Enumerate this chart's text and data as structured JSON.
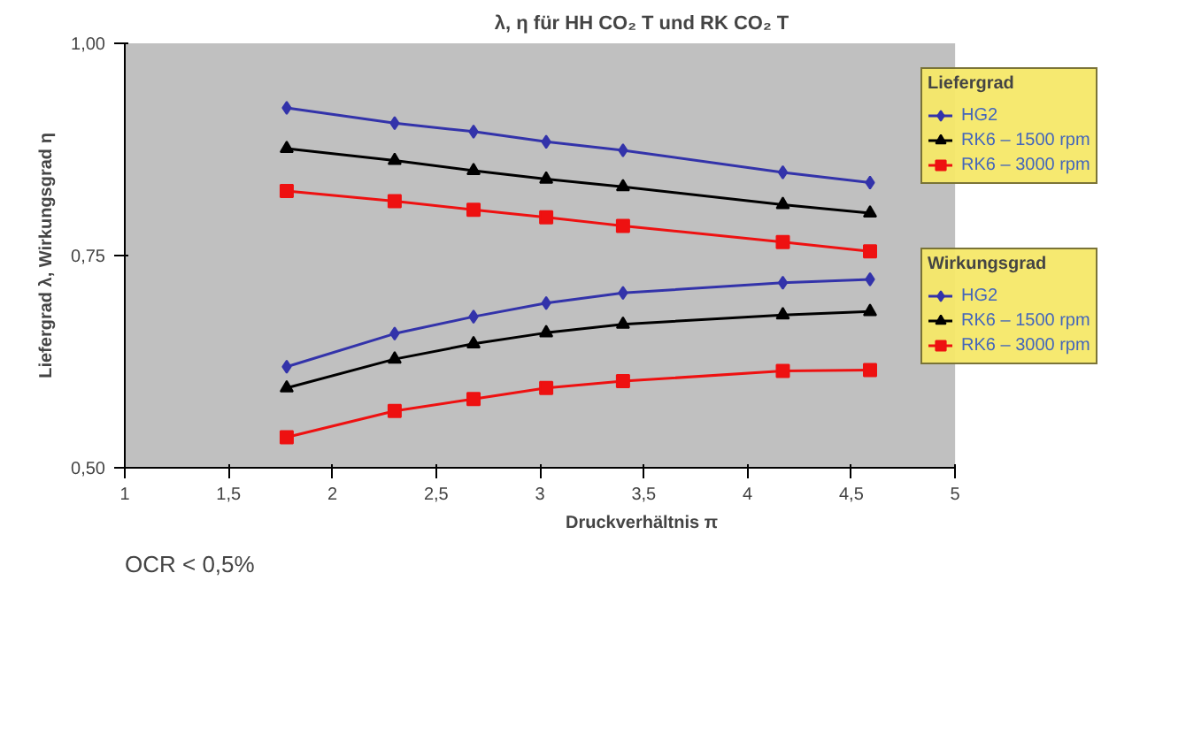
{
  "chart_data": {
    "type": "line",
    "title": "λ, η für HH CO₂ T und RK CO₂ T",
    "xlabel": "Druckverhältnis π",
    "ylabel": "Liefergrad λ, Wirkungsgrad η",
    "x": [
      1.78,
      2.3,
      2.68,
      3.03,
      3.4,
      4.17,
      4.59
    ],
    "series": [
      {
        "name": "HG2",
        "color": "#3333aa",
        "marker": "diamond",
        "values": [
          0.924,
          0.906,
          0.896,
          0.884,
          0.874,
          0.848,
          0.836
        ]
      },
      {
        "name": "RK6 – 1500 rpm",
        "color": "#000000",
        "marker": "triangle",
        "values": [
          0.876,
          0.862,
          0.85,
          0.84,
          0.831,
          0.81,
          0.8
        ]
      },
      {
        "name": "RK6 – 3000 rpm",
        "color": "#ee1111",
        "marker": "square",
        "values": [
          0.826,
          0.814,
          0.804,
          0.795,
          0.785,
          0.766,
          0.755
        ]
      },
      {
        "name": "HG2",
        "color": "#3333aa",
        "marker": "diamond",
        "values": [
          0.619,
          0.658,
          0.678,
          0.694,
          0.706,
          0.718,
          0.722
        ]
      },
      {
        "name": "RK6 – 1500 rpm",
        "color": "#000000",
        "marker": "triangle",
        "values": [
          0.594,
          0.628,
          0.646,
          0.659,
          0.669,
          0.68,
          0.684
        ]
      },
      {
        "name": "RK6 – 3000 rpm",
        "color": "#ee1111",
        "marker": "square",
        "values": [
          0.536,
          0.567,
          0.581,
          0.594,
          0.602,
          0.614,
          0.615
        ]
      }
    ],
    "xlim": [
      1,
      5
    ],
    "xticks": [
      1,
      {
        "value": 1.5,
        "label": "1,5"
      },
      2,
      {
        "value": 2.5,
        "label": "2,5"
      },
      3,
      {
        "value": 3.5,
        "label": "3,5"
      },
      4,
      {
        "value": 4.5,
        "label": "4,5"
      },
      5
    ],
    "ylim": [
      0.5,
      1.0
    ],
    "yticks": [
      {
        "value": 0.5,
        "label": "0,50"
      },
      {
        "value": 0.75,
        "label": "0,75"
      },
      {
        "value": 1.0,
        "label": "1,00"
      }
    ],
    "grid": false,
    "legend": "right",
    "line_style": "solid",
    "annotations": [
      "Liefergrad",
      "Wirkungsgrad",
      "OCR < 0,5%"
    ]
  }
}
